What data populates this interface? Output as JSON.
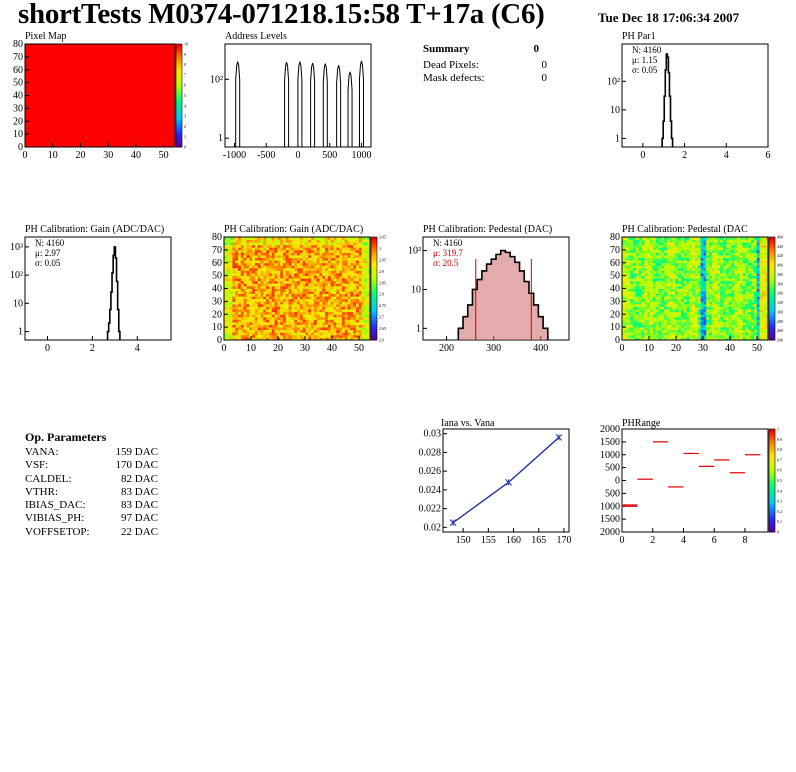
{
  "header": {
    "title": "shortTests M0374-071218.15:58 T+17a (C6)",
    "date": "Tue Dec 18 17:06:34 2007"
  },
  "summary": {
    "title": "Summary",
    "title_value": "0",
    "rows": [
      {
        "label": "Dead Pixels:",
        "value": "0"
      },
      {
        "label": "Mask defects:",
        "value": "0"
      }
    ]
  },
  "op_params": {
    "title": "Op. Parameters",
    "rows": [
      {
        "label": "VANA:",
        "value": "159 DAC"
      },
      {
        "label": "VSF:",
        "value": "170 DAC"
      },
      {
        "label": "CALDEL:",
        "value": "82 DAC"
      },
      {
        "label": "VTHR:",
        "value": "83 DAC"
      },
      {
        "label": "IBIAS_DAC:",
        "value": "83 DAC"
      },
      {
        "label": "VIBIAS_PH:",
        "value": "97 DAC"
      },
      {
        "label": "VOFFSETOP:",
        "value": "22 DAC"
      }
    ]
  },
  "colors": {
    "frame": "#000000",
    "pedestal_stats": "#cc0000",
    "pedestal_fill": "#cc6666",
    "iana_line": "#2233aa",
    "phrange_marks": "#dd0000",
    "pixelmap_fill": "#ff0000"
  },
  "chart_data": [
    {
      "id": "pixel_map",
      "type": "heatmap",
      "title": "Pixel Map",
      "xlim": [
        0,
        52
      ],
      "ylim": [
        0,
        80
      ],
      "xticks": [
        0,
        10,
        20,
        30,
        40,
        50
      ],
      "yticks": [
        0,
        10,
        20,
        30,
        40,
        50,
        60,
        70,
        80
      ],
      "z_uniform": 10,
      "colorbar_ticks": [
        "0",
        "1",
        "2",
        "3",
        "4",
        "5",
        "6",
        "7",
        "8",
        "9",
        "10"
      ]
    },
    {
      "id": "address_levels",
      "type": "bar",
      "title": "Address Levels",
      "log_y": true,
      "xlim": [
        -1150,
        1150
      ],
      "xticks": [
        "-1000",
        "-500",
        "0",
        "500",
        "1000"
      ],
      "yticks": [
        "1",
        "10²"
      ],
      "peaks": [
        {
          "x": -950,
          "height": 400
        },
        {
          "x": -180,
          "height": 380
        },
        {
          "x": 30,
          "height": 400
        },
        {
          "x": 230,
          "height": 360
        },
        {
          "x": 430,
          "height": 340
        },
        {
          "x": 640,
          "height": 300
        },
        {
          "x": 820,
          "height": 180
        },
        {
          "x": 1000,
          "height": 420
        }
      ]
    },
    {
      "id": "ph_par1",
      "type": "bar",
      "title": "PH Par1",
      "log_y": true,
      "xlim": [
        -1,
        6
      ],
      "xticks": [
        "0",
        "2",
        "4",
        "6"
      ],
      "yticks": [
        "1",
        "10",
        "10²"
      ],
      "stats": [
        "N: 4160",
        "μ: 1.15",
        "σ: 0.05"
      ],
      "x": [
        0.95,
        1.0,
        1.05,
        1.1,
        1.15,
        1.2,
        1.25,
        1.3,
        1.35,
        1.4
      ],
      "values": [
        1,
        4,
        30,
        250,
        900,
        700,
        200,
        30,
        4,
        1
      ]
    },
    {
      "id": "ph_gain_hist",
      "type": "bar",
      "title": "PH Calibration: Gain (ADC/DAC)",
      "log_y": true,
      "xlim": [
        -1,
        5.5
      ],
      "xticks": [
        "0",
        "2",
        "4"
      ],
      "yticks": [
        "1",
        "10",
        "10²",
        "10³"
      ],
      "stats": [
        "N: 4160",
        "μ: 2.97",
        "σ: 0.05"
      ],
      "x": [
        2.7,
        2.75,
        2.8,
        2.85,
        2.9,
        2.95,
        3.0,
        3.05,
        3.1,
        3.15,
        3.2
      ],
      "values": [
        1,
        2,
        6,
        25,
        120,
        500,
        1000,
        400,
        60,
        6,
        1
      ]
    },
    {
      "id": "ph_gain_map",
      "type": "heatmap",
      "title": "PH Calibration: Gain (ADC/DAC)",
      "xlim": [
        0,
        52
      ],
      "ylim": [
        0,
        80
      ],
      "xticks": [
        0,
        10,
        20,
        30,
        40,
        50
      ],
      "yticks": [
        0,
        10,
        20,
        30,
        40,
        50,
        60,
        70,
        80
      ],
      "colorbar_ticks": [
        "2.6",
        "2.65",
        "2.7",
        "2.75",
        "2.8",
        "2.85",
        "2.9",
        "2.95",
        "3",
        "3.05"
      ]
    },
    {
      "id": "ph_pedestal_hist",
      "type": "bar",
      "title": "PH Calibration: Pedestal (DAC)",
      "log_y": true,
      "xlim": [
        150,
        460
      ],
      "xticks": [
        "200",
        "300",
        "400"
      ],
      "yticks": [
        "1",
        "10",
        "10²"
      ],
      "stats": [
        "N: 4160",
        "μ: 319.7",
        "σ: 20.5"
      ],
      "x": [
        230,
        240,
        250,
        260,
        270,
        280,
        290,
        300,
        310,
        320,
        330,
        340,
        350,
        360,
        370,
        380,
        390,
        400,
        410
      ],
      "values": [
        1,
        2,
        4,
        10,
        18,
        30,
        45,
        60,
        80,
        100,
        90,
        70,
        50,
        30,
        16,
        8,
        4,
        2,
        1
      ],
      "markers": [
        262,
        380
      ]
    },
    {
      "id": "ph_pedestal_map",
      "type": "heatmap",
      "title": "PH Calibration: Pedestal (DAC",
      "xlim": [
        0,
        52
      ],
      "ylim": [
        0,
        80
      ],
      "xticks": [
        0,
        10,
        20,
        30,
        40,
        50
      ],
      "yticks": [
        0,
        10,
        20,
        30,
        40,
        50,
        60,
        70,
        80
      ],
      "colorbar_ticks": [
        "240",
        "260",
        "280",
        "300",
        "320",
        "340",
        "360",
        "380",
        "400",
        "420",
        "440",
        "460"
      ]
    },
    {
      "id": "iana_vs_vana",
      "type": "line",
      "title": "Iana vs. Vana",
      "xlim": [
        146,
        171
      ],
      "ylim": [
        0.0195,
        0.0305
      ],
      "xticks": [
        "150",
        "155",
        "160",
        "165",
        "170"
      ],
      "yticks": [
        "0.02",
        "0.022",
        "0.024",
        "0.026",
        "0.028",
        "0.03"
      ],
      "x": [
        148,
        159,
        169
      ],
      "y": [
        0.0205,
        0.0248,
        0.0296
      ]
    },
    {
      "id": "ph_range",
      "type": "scatter",
      "title": "PHRange",
      "xlim": [
        0,
        9.5
      ],
      "ylim": [
        -2000,
        2000
      ],
      "xticks": [
        "0",
        "2",
        "4",
        "6",
        "8"
      ],
      "yticks": [
        "2000",
        "1500",
        "1000",
        "500",
        "0",
        "-500",
        "-1000",
        "-1500",
        "-2000"
      ],
      "ytick_labels": [
        "2000",
        "1500",
        "1000",
        "500",
        "0",
        "500",
        "1000",
        "1500",
        "2000"
      ],
      "x": [
        0.5,
        1.5,
        2.5,
        3.5,
        4.5,
        5.5,
        6.5,
        7.5,
        8.5
      ],
      "y": [
        -1000,
        50,
        1500,
        -250,
        1050,
        550,
        800,
        300,
        1000
      ],
      "extra_y": [
        -950
      ],
      "colorbar_ticks": [
        "0",
        "0.1",
        "0.2",
        "0.3",
        "0.4",
        "0.5",
        "0.6",
        "0.7",
        "0.8",
        "0.9",
        "1"
      ]
    }
  ]
}
